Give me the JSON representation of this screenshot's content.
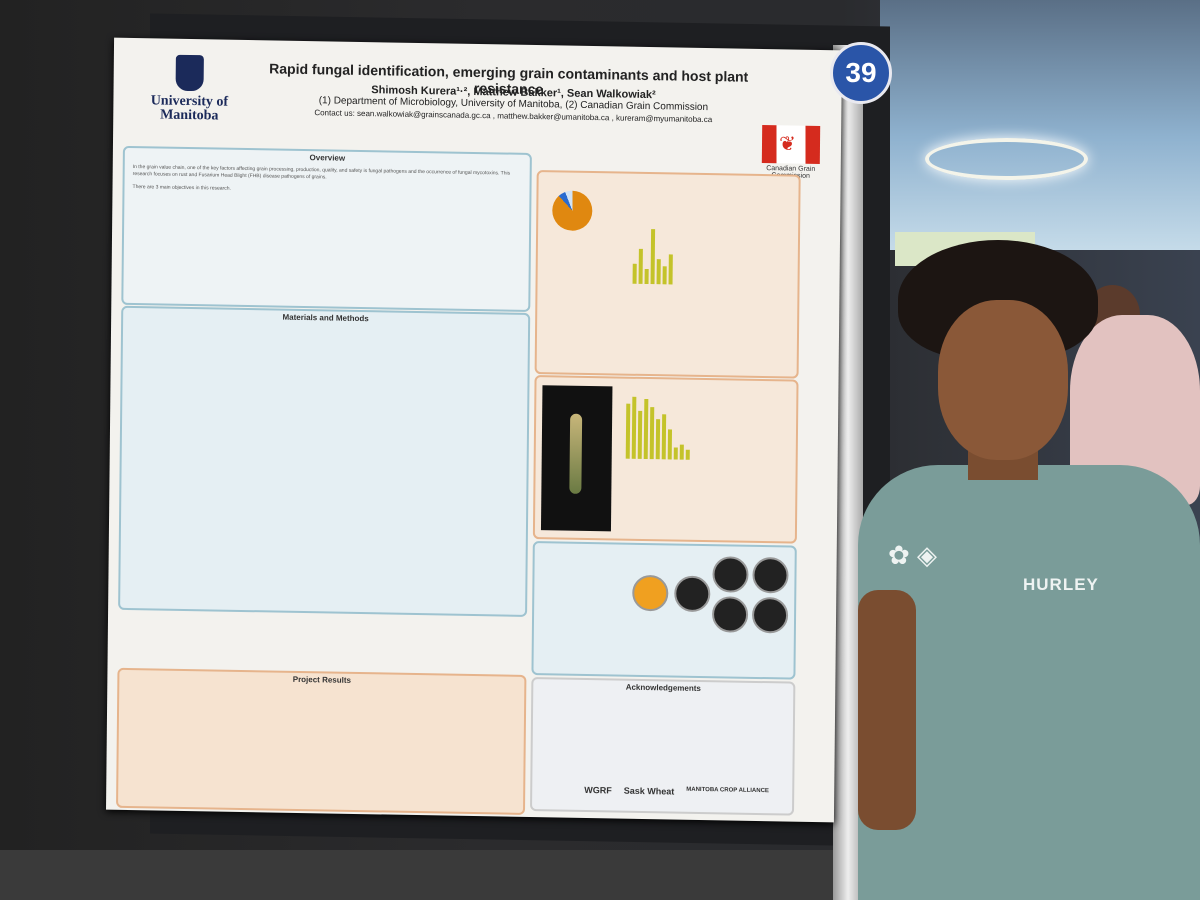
{
  "poster": {
    "university": "University of Manitoba",
    "title": "Rapid fungal identification, emerging grain contaminants and host plant resistance",
    "authors": "Shimosh Kurera¹·², Matthew Bakker¹, Sean Walkowiak²",
    "affiliations": "(1) Department of Microbiology, University of Manitoba, (2) Canadian Grain Commission",
    "contact": "Contact us: sean.walkowiak@grainscanada.gc.ca , matthew.bakker@umanitoba.ca , kureram@myumanitoba.ca",
    "agency": "Canadian Grain Commission",
    "section_overview": "Overview",
    "section_methods": "Materials and Methods",
    "section_results": "Project Results",
    "section_ack": "Acknowledgements",
    "overview_text": "In the grain value chain, one of the key factors affecting grain processing, production, quality, and safety is fungal pathogens and the occurrence of fungal mycotoxins. This research focuses on rust and Fusarium Head Blight (FHB) disease pathogens of grains.",
    "objectives_intro": "There are 3 main objectives in this research.",
    "sponsors": [
      "WGRF",
      "Sask Wheat",
      "MANITOBA CROP ALLIANCE"
    ]
  },
  "booth_number": "39",
  "shirt_text": "HURLEY"
}
